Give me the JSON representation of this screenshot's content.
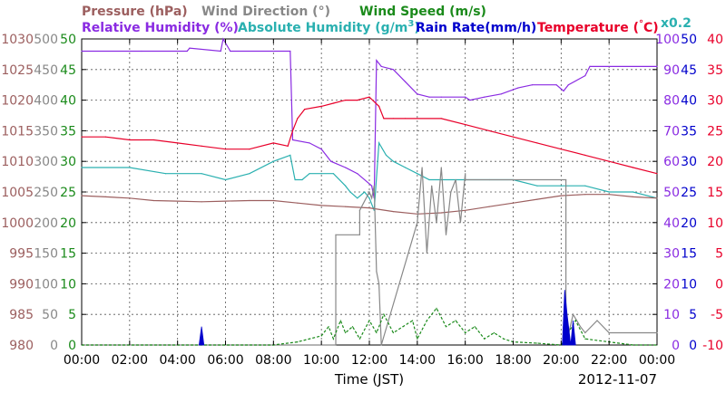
{
  "chart_data": {
    "type": "line",
    "xlabel": "Time (JST)",
    "date_label": "2012-11-07",
    "x_ticks": [
      "00:00",
      "02:00",
      "04:00",
      "06:00",
      "08:00",
      "10:00",
      "12:00",
      "14:00",
      "16:00",
      "18:00",
      "20:00",
      "22:00",
      "00:00"
    ],
    "xlim_hours": [
      0,
      24
    ],
    "grid": true,
    "legend": {
      "row1": [
        {
          "key": "pressure",
          "label": "Pressure (hPa)",
          "color": "#9c5f5f"
        },
        {
          "key": "wind_direction",
          "label": "Wind Direction (°)",
          "color": "#888888"
        },
        {
          "key": "wind_speed",
          "label": "Wind Speed (m/s)",
          "color": "#1a8a1a"
        }
      ],
      "row2": [
        {
          "key": "relative_humidity",
          "label": "Relative Humidity (%)",
          "color": "#8a2be2"
        },
        {
          "key": "abs_humidity_a",
          "label": "Absolute Humidity (g/m",
          "color": "#2ab0b0"
        },
        {
          "key": "abs_humidity_sup",
          "label": "3",
          "color": "#2ab0b0"
        },
        {
          "key": "abs_humidity_b",
          "label": ")",
          "color": "#2ab0b0"
        },
        {
          "key": "rain_rate",
          "label": "Rain Rate(mm/h)",
          "color": "#0000cc"
        },
        {
          "key": "temp_a",
          "label": "Temperature (",
          "color": "#e8002a"
        },
        {
          "key": "temp_deg",
          "label": "°",
          "color": "#e8002a"
        },
        {
          "key": "temp_b",
          "label": "C)",
          "color": "#e8002a"
        }
      ],
      "multiplier": {
        "label": "x0.2",
        "color": "#2ab0b0"
      }
    },
    "axes": {
      "pressure": {
        "ticks": [
          "1030",
          "1025",
          "1020",
          "1015",
          "1010",
          "1005",
          "1000",
          "995",
          "990",
          "985",
          "980"
        ],
        "range": [
          980,
          1030
        ],
        "color": "#9c5f5f"
      },
      "wind_direction": {
        "ticks": [
          "500",
          "450",
          "400",
          "350",
          "300",
          "250",
          "200",
          "150",
          "100",
          "50",
          "0"
        ],
        "range": [
          0,
          500
        ],
        "color": "#888888"
      },
      "wind_speed": {
        "ticks": [
          "50",
          "45",
          "40",
          "35",
          "30",
          "25",
          "20",
          "15",
          "10",
          "5",
          "0"
        ],
        "range": [
          0,
          50
        ],
        "color": "#1a8a1a"
      },
      "relative_humidity": {
        "ticks": [
          "100",
          "90",
          "80",
          "70",
          "60",
          "50",
          "40",
          "30",
          "20",
          "10",
          "0"
        ],
        "range": [
          0,
          100
        ],
        "color": "#8a2be2"
      },
      "rain_rate": {
        "ticks": [
          "50",
          "45",
          "40",
          "35",
          "30",
          "25",
          "20",
          "15",
          "10",
          "5",
          "0"
        ],
        "range": [
          0,
          50
        ],
        "color": "#0000cc"
      },
      "temperature": {
        "ticks": [
          "40",
          "35",
          "30",
          "25",
          "20",
          "15",
          "10",
          "5",
          "0",
          "-5",
          "-10"
        ],
        "range": [
          -10,
          40
        ],
        "color": "#e8002a"
      }
    },
    "series": [
      {
        "name": "Relative Humidity (%)",
        "axis": "relative_humidity",
        "color": "#8a2be2",
        "x": [
          0,
          2.5,
          4.4,
          4.5,
          5.8,
          5.9,
          6.2,
          8.7,
          8.8,
          9.5,
          10,
          10.4,
          11,
          11.5,
          12.1,
          12.2,
          12.3,
          12.5,
          13,
          13.5,
          14,
          14.5,
          15,
          16,
          16.2,
          16.8,
          17.5,
          18.2,
          18.8,
          19.8,
          20.1,
          20.3,
          21,
          21.2,
          24
        ],
        "y": [
          96,
          96,
          96,
          97,
          96,
          100,
          96,
          96,
          67,
          66,
          64,
          60,
          58,
          56,
          52,
          48,
          93,
          91,
          90,
          86,
          82,
          81,
          81,
          81,
          80,
          81,
          82,
          84,
          85,
          85,
          83,
          85,
          88,
          91,
          91
        ]
      },
      {
        "name": "Absolute Humidity (g/m3) x0.2",
        "axis": "wind_speed",
        "color": "#2ab0b0",
        "x": [
          0,
          2,
          3.5,
          5,
          6,
          7,
          8,
          8.7,
          8.9,
          9.2,
          9.5,
          10,
          10.5,
          11,
          11.2,
          11.5,
          11.8,
          12,
          12.2,
          12.4,
          12.7,
          13,
          13.5,
          14,
          14.5,
          15,
          16,
          17,
          18,
          19,
          20,
          21,
          22,
          23,
          24
        ],
        "y": [
          29,
          29,
          28,
          28,
          27,
          28,
          30,
          31,
          27,
          27,
          28,
          28,
          28,
          26,
          25,
          24,
          25,
          24,
          22,
          33,
          31,
          30,
          29,
          28,
          27,
          27,
          27,
          27,
          27,
          26,
          26,
          26,
          25,
          25,
          24
        ]
      },
      {
        "name": "Temperature (°C)",
        "axis": "temperature",
        "color": "#e8002a",
        "x": [
          0,
          1,
          2,
          3,
          4,
          5,
          6,
          7,
          8,
          8.6,
          8.8,
          9,
          9.3,
          10,
          10.5,
          11,
          11.5,
          12,
          12.4,
          12.6,
          13,
          13.5,
          14,
          15,
          16,
          17,
          18,
          19,
          20,
          21,
          22,
          23,
          24
        ],
        "y": [
          24,
          24,
          23.5,
          23.5,
          23,
          22.5,
          22,
          22,
          23,
          22.5,
          25,
          27,
          28.5,
          29,
          29.5,
          30,
          30,
          30.5,
          29,
          27,
          27,
          27,
          27,
          27,
          26,
          25,
          24,
          23,
          22,
          21,
          20,
          19,
          18
        ]
      },
      {
        "name": "Pressure (hPa)",
        "axis": "pressure",
        "color": "#9c5f5f",
        "x": [
          0,
          1,
          2,
          3,
          4,
          5,
          6,
          7,
          8,
          9,
          10,
          11,
          12,
          13,
          14,
          15,
          16,
          17,
          18,
          19,
          20,
          21,
          22,
          23,
          24
        ],
        "y": [
          1004.4,
          1004.2,
          1004,
          1003.6,
          1003.5,
          1003.4,
          1003.5,
          1003.6,
          1003.6,
          1003.2,
          1002.8,
          1002.6,
          1002.4,
          1001.8,
          1001.4,
          1001.6,
          1002,
          1002.6,
          1003.2,
          1003.8,
          1004.4,
          1004.6,
          1004.6,
          1004.2,
          1004
        ]
      },
      {
        "name": "Wind Direction (°)",
        "axis": "wind_direction",
        "color": "#888888",
        "x": [
          0,
          10.6,
          10.6,
          11.6,
          11.6,
          12,
          12.1,
          12.2,
          12.3,
          12.4,
          12.5,
          12.5,
          14,
          14.2,
          14.4,
          14.6,
          14.8,
          15,
          15.2,
          15.4,
          15.6,
          15.8,
          16,
          16,
          20.2,
          20.2,
          20.5,
          20.8,
          21,
          21.5,
          22,
          24
        ],
        "y": [
          0,
          0,
          180,
          180,
          220,
          250,
          240,
          260,
          120,
          100,
          0,
          0,
          200,
          290,
          150,
          260,
          200,
          290,
          180,
          250,
          270,
          200,
          280,
          270,
          270,
          0,
          50,
          30,
          20,
          40,
          20,
          20
        ]
      },
      {
        "name": "Wind Speed (m/s)",
        "axis": "wind_speed",
        "color": "#1a8a1a",
        "x": [
          0,
          8,
          9,
          9.5,
          10,
          10.3,
          10.5,
          10.8,
          11,
          11.3,
          11.6,
          12,
          12.3,
          12.6,
          13,
          13.4,
          13.8,
          14,
          14.4,
          14.8,
          15.2,
          15.6,
          16,
          16.4,
          16.8,
          17.2,
          17.6,
          18,
          19,
          20,
          20.3,
          20.6,
          21,
          22,
          23,
          24
        ],
        "y": [
          0,
          0,
          0.5,
          1,
          1.5,
          3,
          1,
          4,
          2,
          3,
          1,
          4,
          2,
          5,
          2,
          3,
          4,
          1,
          4,
          6,
          3,
          4,
          2,
          3,
          1,
          2,
          1,
          0.5,
          0.3,
          0,
          2,
          4,
          1,
          0.5,
          0,
          0
        ]
      },
      {
        "name": "Rain Rate(mm/h)",
        "axis": "rain_rate",
        "color": "#0000cc",
        "x": [
          4.9,
          5,
          5.1,
          20.05,
          20.15,
          20.25,
          20.4,
          20.5,
          20.6
        ],
        "y": [
          0,
          3,
          0,
          0,
          9,
          5,
          0,
          4,
          0
        ]
      }
    ]
  }
}
